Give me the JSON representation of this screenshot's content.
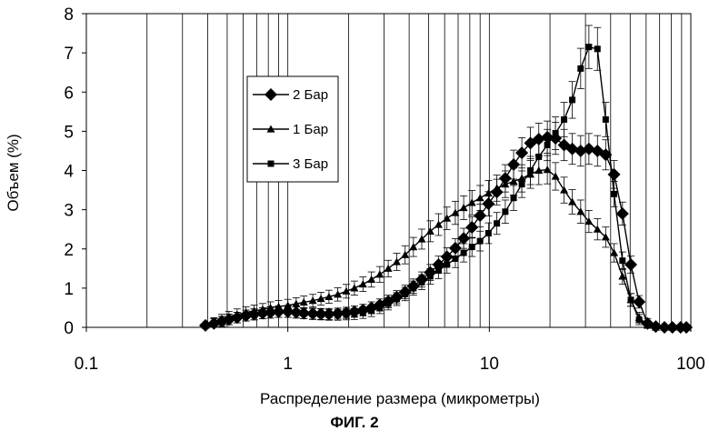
{
  "figure": {
    "caption": "ФИГ. 2"
  },
  "chart_data": {
    "type": "line",
    "xscale": "log",
    "xlim": [
      0.1,
      100
    ],
    "ylim": [
      0,
      8
    ],
    "xlabel": "Распределение размера (микрометры)",
    "ylabel": "Объем (%)",
    "x_ticks": [
      {
        "value": 0.1,
        "label": "0.1"
      },
      {
        "value": 1,
        "label": "1"
      },
      {
        "value": 10,
        "label": "10"
      },
      {
        "value": 100,
        "label": "100"
      }
    ],
    "y_ticks": [
      {
        "value": 0,
        "label": "0"
      },
      {
        "value": 1,
        "label": "1"
      },
      {
        "value": 2,
        "label": "2"
      },
      {
        "value": 3,
        "label": "3"
      },
      {
        "value": 4,
        "label": "4"
      },
      {
        "value": 5,
        "label": "5"
      },
      {
        "value": 6,
        "label": "6"
      },
      {
        "value": 7,
        "label": "7"
      },
      {
        "value": 8,
        "label": "8"
      }
    ],
    "grid": "vertical minor log gridlines",
    "error_bars": true,
    "legend_position": "upper-left inside plot",
    "series": [
      {
        "name": "2 Бар",
        "marker": "diamond",
        "points": [
          [
            0.39,
            0.05
          ],
          [
            0.43,
            0.1
          ],
          [
            0.47,
            0.15
          ],
          [
            0.51,
            0.2
          ],
          [
            0.56,
            0.25
          ],
          [
            0.62,
            0.3
          ],
          [
            0.68,
            0.33
          ],
          [
            0.75,
            0.36
          ],
          [
            0.82,
            0.38
          ],
          [
            0.9,
            0.4
          ],
          [
            1.0,
            0.4
          ],
          [
            1.1,
            0.38
          ],
          [
            1.2,
            0.36
          ],
          [
            1.33,
            0.35
          ],
          [
            1.46,
            0.34
          ],
          [
            1.6,
            0.34
          ],
          [
            1.77,
            0.35
          ],
          [
            1.95,
            0.37
          ],
          [
            2.14,
            0.4
          ],
          [
            2.36,
            0.44
          ],
          [
            2.6,
            0.5
          ],
          [
            2.86,
            0.57
          ],
          [
            3.15,
            0.66
          ],
          [
            3.47,
            0.77
          ],
          [
            3.82,
            0.9
          ],
          [
            4.2,
            1.05
          ],
          [
            4.62,
            1.22
          ],
          [
            5.09,
            1.4
          ],
          [
            5.6,
            1.6
          ],
          [
            6.16,
            1.8
          ],
          [
            6.78,
            2.02
          ],
          [
            7.46,
            2.27
          ],
          [
            8.2,
            2.55
          ],
          [
            9.0,
            2.85
          ],
          [
            9.9,
            3.15
          ],
          [
            10.9,
            3.45
          ],
          [
            12.0,
            3.8
          ],
          [
            13.2,
            4.15
          ],
          [
            14.5,
            4.45
          ],
          [
            16.0,
            4.7
          ],
          [
            17.6,
            4.8
          ],
          [
            19.4,
            4.85
          ],
          [
            21.3,
            4.82
          ],
          [
            23.5,
            4.65
          ],
          [
            25.8,
            4.55
          ],
          [
            28.4,
            4.5
          ],
          [
            31.2,
            4.55
          ],
          [
            34.4,
            4.5
          ],
          [
            37.8,
            4.4
          ],
          [
            41.6,
            3.9
          ],
          [
            45.8,
            2.9
          ],
          [
            50.4,
            1.6
          ],
          [
            55.4,
            0.65
          ],
          [
            61,
            0.1
          ],
          [
            67,
            0.02
          ],
          [
            74,
            0.0
          ],
          [
            81,
            0.0
          ],
          [
            89,
            0.0
          ],
          [
            95,
            0.0
          ]
        ]
      },
      {
        "name": "1 Бар",
        "marker": "triangle",
        "points": [
          [
            0.39,
            0.05
          ],
          [
            0.43,
            0.12
          ],
          [
            0.47,
            0.2
          ],
          [
            0.51,
            0.27
          ],
          [
            0.56,
            0.33
          ],
          [
            0.62,
            0.38
          ],
          [
            0.68,
            0.42
          ],
          [
            0.75,
            0.46
          ],
          [
            0.82,
            0.5
          ],
          [
            0.9,
            0.53
          ],
          [
            1.0,
            0.56
          ],
          [
            1.1,
            0.6
          ],
          [
            1.2,
            0.64
          ],
          [
            1.33,
            0.68
          ],
          [
            1.46,
            0.73
          ],
          [
            1.6,
            0.78
          ],
          [
            1.77,
            0.84
          ],
          [
            1.95,
            0.92
          ],
          [
            2.14,
            1.0
          ],
          [
            2.36,
            1.1
          ],
          [
            2.6,
            1.22
          ],
          [
            2.86,
            1.35
          ],
          [
            3.15,
            1.5
          ],
          [
            3.47,
            1.67
          ],
          [
            3.82,
            1.85
          ],
          [
            4.2,
            2.05
          ],
          [
            4.62,
            2.25
          ],
          [
            5.09,
            2.45
          ],
          [
            5.6,
            2.62
          ],
          [
            6.16,
            2.78
          ],
          [
            6.78,
            2.92
          ],
          [
            7.46,
            3.05
          ],
          [
            8.2,
            3.18
          ],
          [
            9.0,
            3.3
          ],
          [
            9.9,
            3.42
          ],
          [
            10.9,
            3.55
          ],
          [
            12.0,
            3.65
          ],
          [
            13.2,
            3.72
          ],
          [
            14.5,
            3.8
          ],
          [
            16.0,
            3.9
          ],
          [
            17.6,
            4.0
          ],
          [
            19.4,
            4.02
          ],
          [
            21.3,
            3.85
          ],
          [
            23.5,
            3.5
          ],
          [
            25.8,
            3.2
          ],
          [
            28.4,
            2.95
          ],
          [
            31.2,
            2.7
          ],
          [
            34.4,
            2.5
          ],
          [
            37.8,
            2.3
          ],
          [
            41.6,
            1.9
          ],
          [
            45.8,
            1.3
          ],
          [
            50.4,
            0.7
          ],
          [
            55.4,
            0.25
          ],
          [
            61,
            0.05
          ],
          [
            67,
            0.0
          ],
          [
            74,
            0.0
          ],
          [
            81,
            0.0
          ],
          [
            89,
            0.0
          ],
          [
            95,
            0.0
          ]
        ]
      },
      {
        "name": "3 Бар",
        "marker": "square",
        "points": [
          [
            0.39,
            0.05
          ],
          [
            0.43,
            0.1
          ],
          [
            0.47,
            0.15
          ],
          [
            0.51,
            0.2
          ],
          [
            0.56,
            0.25
          ],
          [
            0.62,
            0.3
          ],
          [
            0.68,
            0.33
          ],
          [
            0.75,
            0.36
          ],
          [
            0.82,
            0.38
          ],
          [
            0.9,
            0.4
          ],
          [
            1.0,
            0.4
          ],
          [
            1.1,
            0.38
          ],
          [
            1.2,
            0.36
          ],
          [
            1.33,
            0.34
          ],
          [
            1.46,
            0.33
          ],
          [
            1.6,
            0.32
          ],
          [
            1.77,
            0.32
          ],
          [
            1.95,
            0.33
          ],
          [
            2.14,
            0.34
          ],
          [
            2.36,
            0.37
          ],
          [
            2.6,
            0.42
          ],
          [
            2.86,
            0.5
          ],
          [
            3.15,
            0.6
          ],
          [
            3.47,
            0.72
          ],
          [
            3.82,
            0.85
          ],
          [
            4.2,
            1.0
          ],
          [
            4.62,
            1.15
          ],
          [
            5.09,
            1.3
          ],
          [
            5.6,
            1.45
          ],
          [
            6.16,
            1.6
          ],
          [
            6.78,
            1.75
          ],
          [
            7.46,
            1.9
          ],
          [
            8.2,
            2.05
          ],
          [
            9.0,
            2.2
          ],
          [
            9.9,
            2.4
          ],
          [
            10.9,
            2.65
          ],
          [
            12.0,
            2.95
          ],
          [
            13.2,
            3.3
          ],
          [
            14.5,
            3.65
          ],
          [
            16.0,
            4.0
          ],
          [
            17.6,
            4.35
          ],
          [
            19.4,
            4.65
          ],
          [
            21.3,
            4.95
          ],
          [
            23.5,
            5.3
          ],
          [
            25.8,
            5.8
          ],
          [
            28.4,
            6.6
          ],
          [
            31.2,
            7.15
          ],
          [
            34.4,
            7.1
          ],
          [
            37.8,
            5.3
          ],
          [
            41.6,
            3.4
          ],
          [
            45.8,
            1.7
          ],
          [
            50.4,
            0.7
          ],
          [
            55.4,
            0.2
          ],
          [
            61,
            0.05
          ],
          [
            67,
            0.0
          ],
          [
            74,
            0.0
          ],
          [
            81,
            0.0
          ],
          [
            89,
            0.0
          ],
          [
            95,
            0.0
          ]
        ]
      }
    ]
  }
}
